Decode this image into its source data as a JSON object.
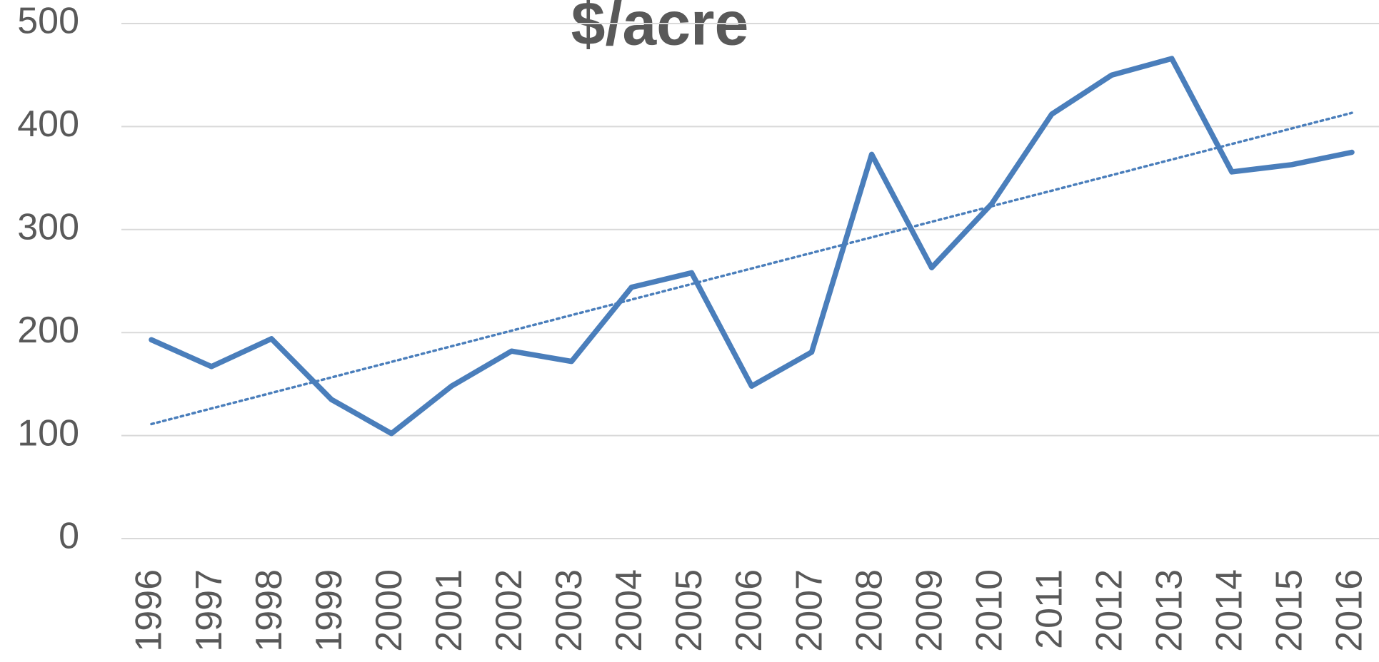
{
  "chart_data": {
    "type": "line",
    "title": "$/acre",
    "categories": [
      "1996",
      "1997",
      "1998",
      "1999",
      "2000",
      "2001",
      "2002",
      "2003",
      "2004",
      "2005",
      "2006",
      "2007",
      "2008",
      "2009",
      "2010",
      "2011",
      "2012",
      "2013",
      "2014",
      "2015",
      "2016"
    ],
    "values": [
      193,
      167,
      194,
      135,
      102,
      148,
      182,
      172,
      244,
      258,
      148,
      181,
      373,
      263,
      325,
      412,
      450,
      466,
      356,
      363,
      375
    ],
    "color": "#4a7ebb",
    "trendline": "linear",
    "ylim": [
      0,
      500
    ],
    "yticks": [
      0,
      100,
      200,
      300,
      400,
      500
    ],
    "grid": true
  }
}
